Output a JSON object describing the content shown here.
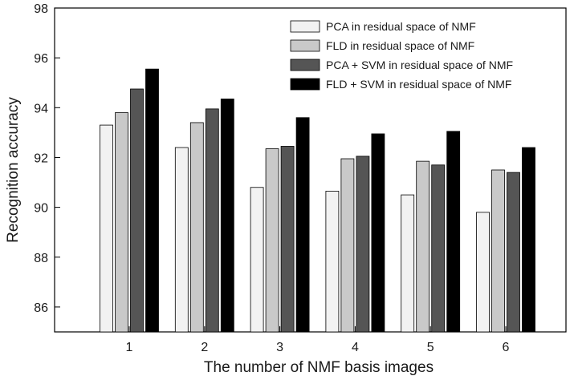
{
  "chart_data": {
    "type": "bar",
    "title": "",
    "xlabel": "The number of NMF basis images",
    "ylabel": "Recognition accuracy",
    "categories": [
      "1",
      "2",
      "3",
      "4",
      "5",
      "6"
    ],
    "ylim": [
      85,
      98
    ],
    "yticks": [
      86,
      88,
      90,
      92,
      94,
      96,
      98
    ],
    "grid": false,
    "legend_position": "top-right",
    "series": [
      {
        "name": "PCA in residual space of NMF",
        "color": "#f2f2f2",
        "values": [
          93.3,
          92.4,
          90.8,
          90.65,
          90.5,
          89.8
        ]
      },
      {
        "name": "FLD in residual space of NMF",
        "color": "#c9c9c9",
        "values": [
          93.8,
          93.4,
          92.35,
          91.95,
          91.85,
          91.5
        ]
      },
      {
        "name": "PCA + SVM in residual space of NMF",
        "color": "#555555",
        "values": [
          94.75,
          93.95,
          92.45,
          92.05,
          91.7,
          91.4
        ]
      },
      {
        "name": "FLD + SVM in residual space of NMF",
        "color": "#000000",
        "values": [
          95.55,
          94.35,
          93.6,
          92.95,
          93.05,
          92.4
        ]
      }
    ]
  }
}
